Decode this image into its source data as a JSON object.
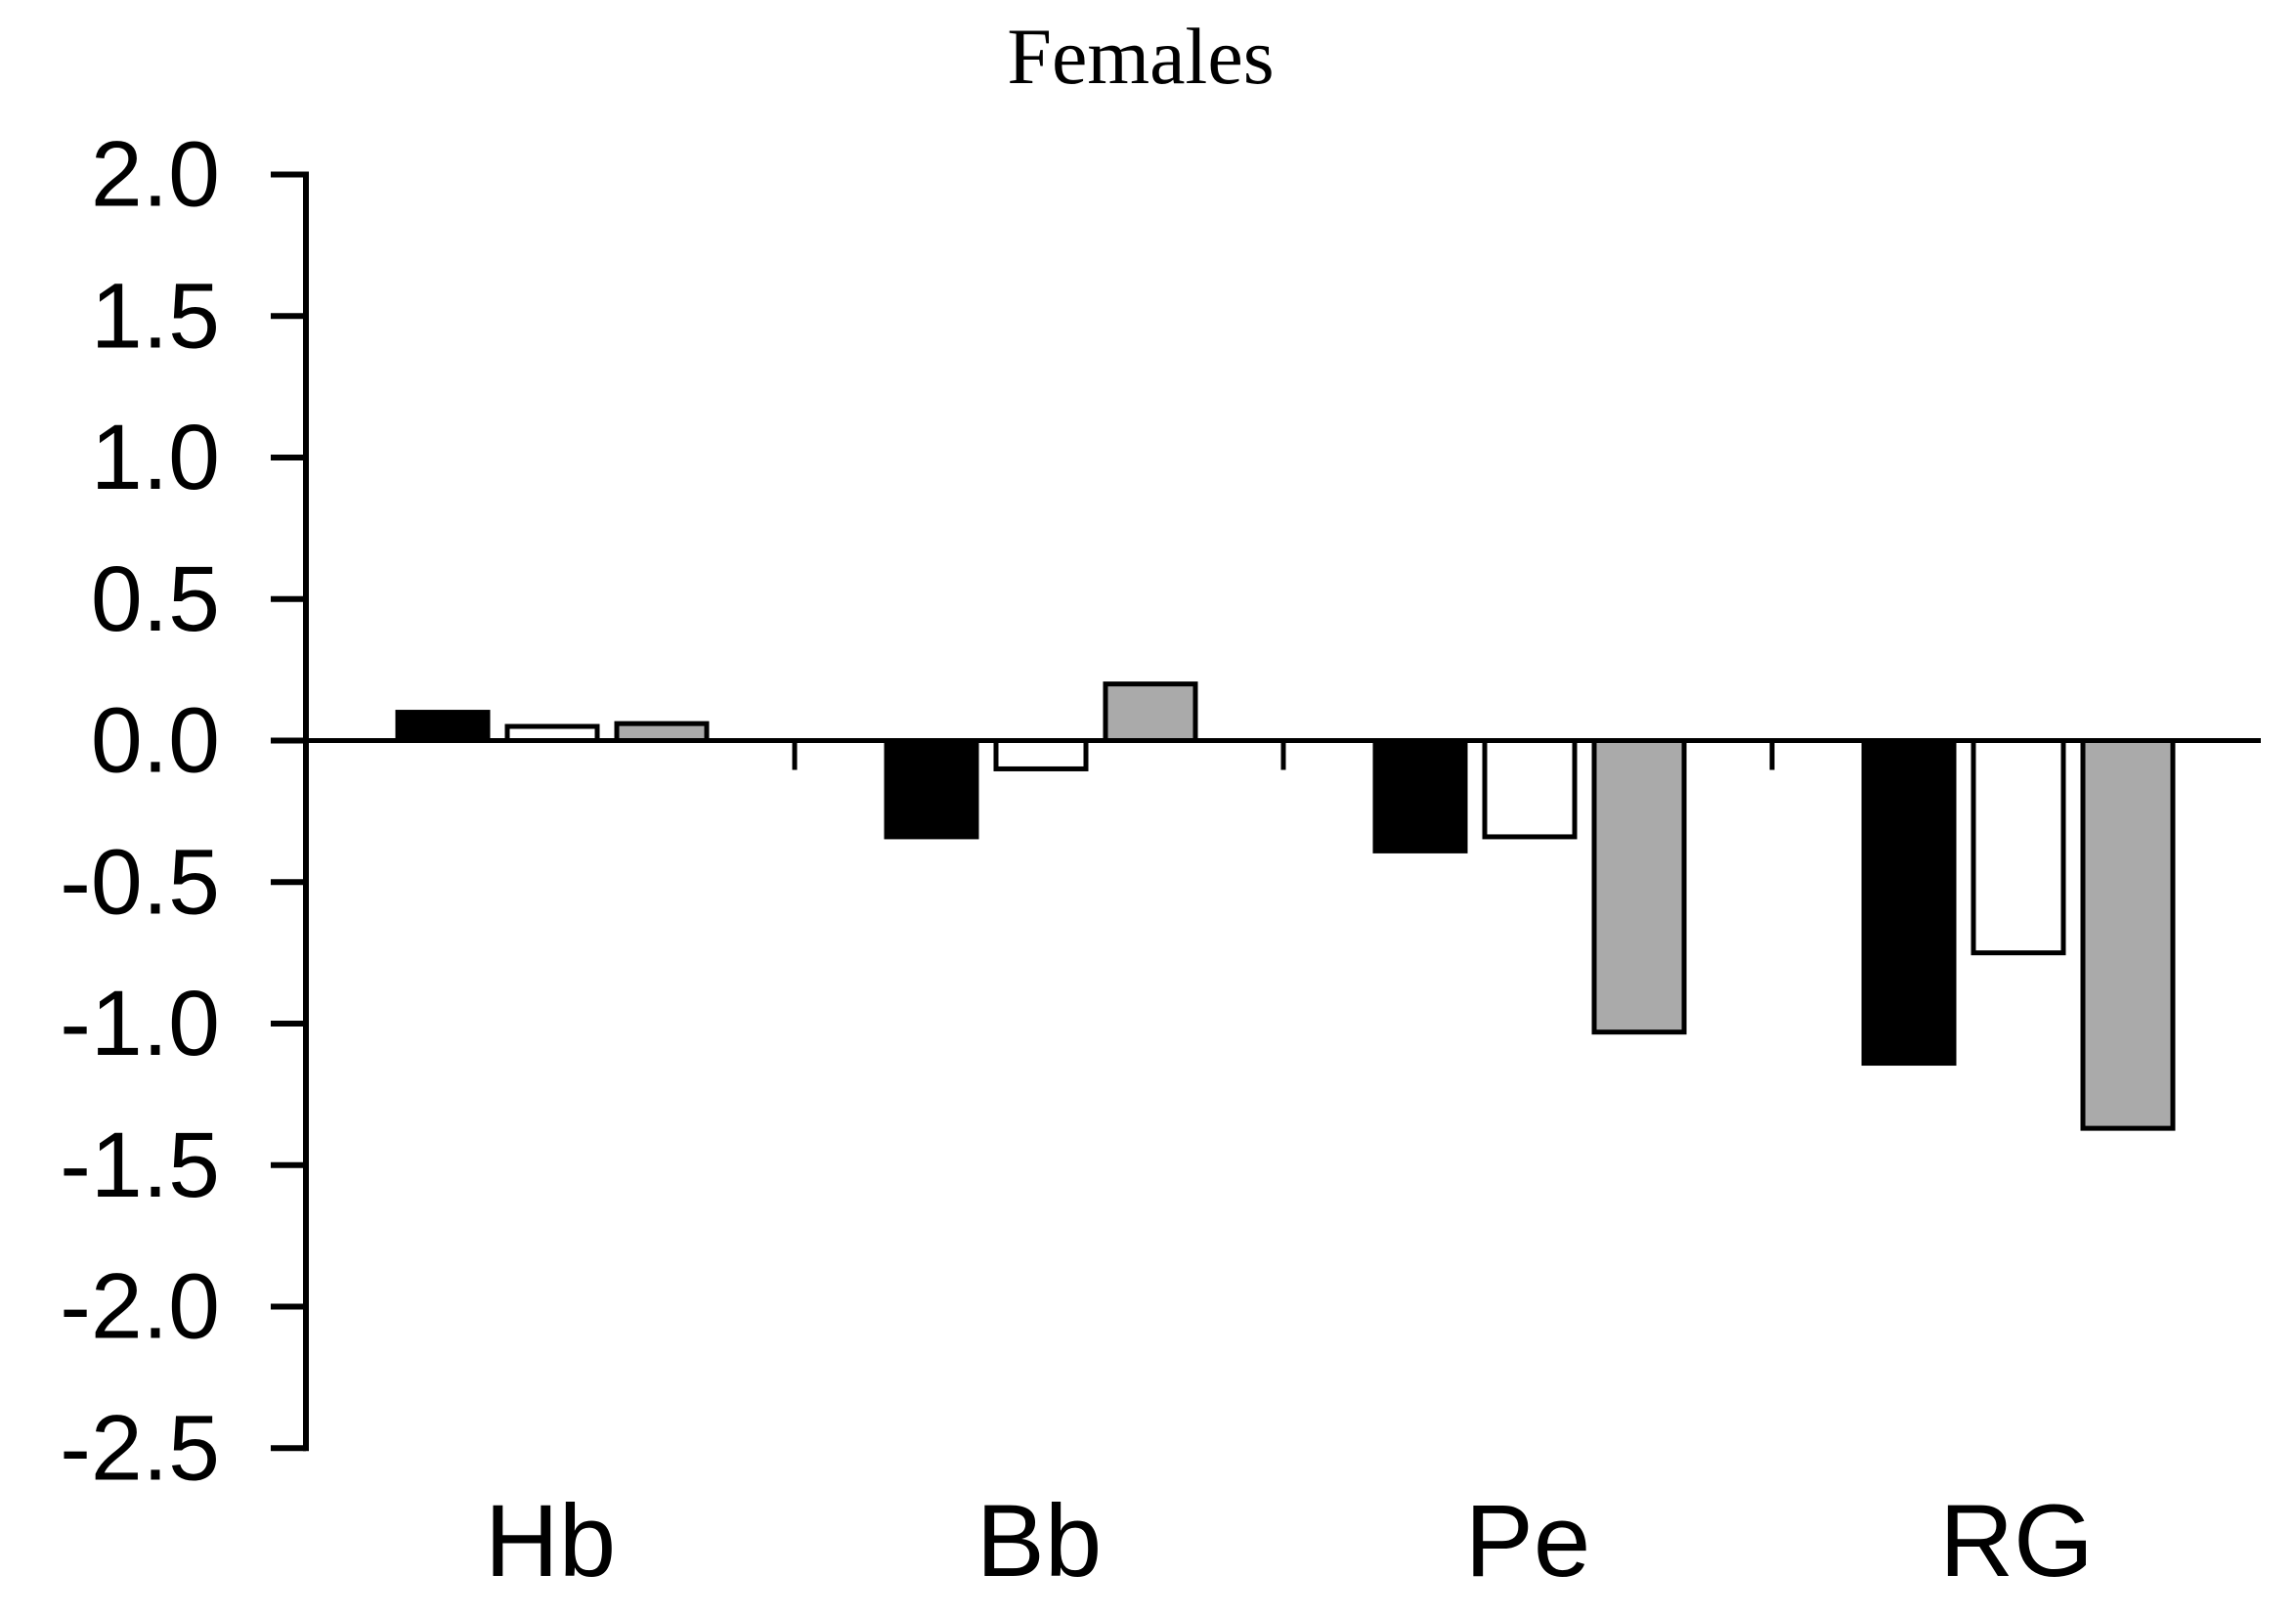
{
  "chart_data": {
    "type": "bar",
    "title": "Females",
    "categories": [
      "Hb",
      "Bb",
      "Pe",
      "RG"
    ],
    "series": [
      {
        "name": "black",
        "fill": "#000000",
        "values": [
          0.1,
          -0.34,
          -0.39,
          -1.14
        ]
      },
      {
        "name": "white",
        "fill": "#ffffff",
        "values": [
          0.05,
          -0.1,
          -0.34,
          -0.75
        ]
      },
      {
        "name": "gray",
        "fill": "#aaaaaa",
        "values": [
          0.06,
          0.2,
          -1.03,
          -1.37
        ]
      }
    ],
    "ylim": [
      -2.5,
      2.0
    ],
    "ytick_step": 0.5,
    "ytick_labels": [
      "2.0",
      "1.5",
      "1.0",
      "0.5",
      "0.0",
      "-0.5",
      "-1.0",
      "-1.5",
      "-2.0",
      "-2.5"
    ],
    "xlabel": "",
    "ylabel": "",
    "grid": false,
    "legend": "none",
    "bar_outline_color": "#000000",
    "axis_color": "#000000",
    "background_color": "#ffffff",
    "annotations": []
  }
}
